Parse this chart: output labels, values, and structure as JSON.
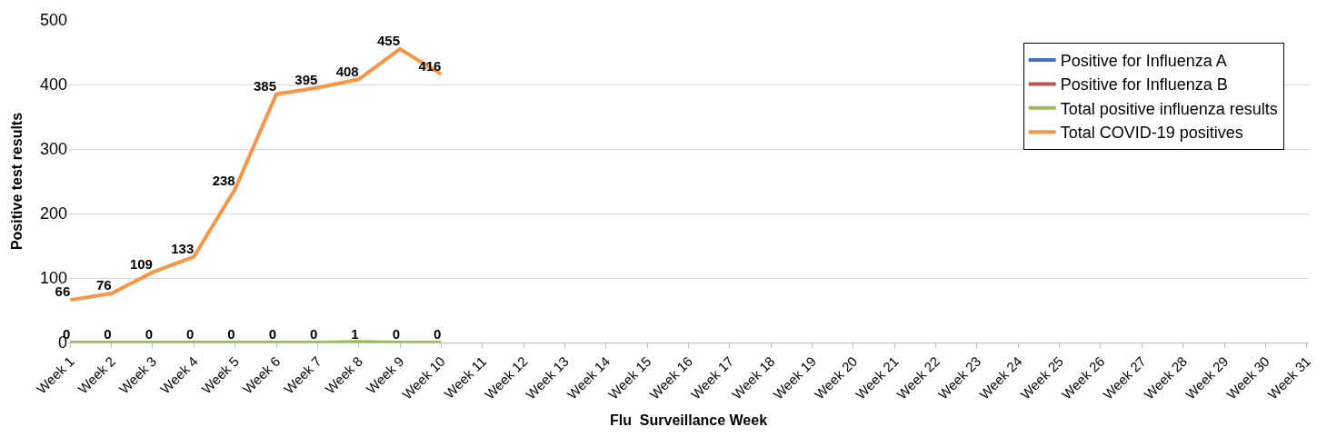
{
  "chart_data": {
    "type": "line",
    "xlabel": "Flu  Surveillance Week",
    "ylabel": "Positive test results",
    "categories": [
      "Week 1",
      "Week 2",
      "Week 3",
      "Week 4",
      "Week 5",
      "Week 6",
      "Week 7",
      "Week 8",
      "Week 9",
      "Week 10",
      "Week 11",
      "Week 12",
      "Week 13",
      "Week 14",
      "Week 15",
      "Week 16",
      "Week 17",
      "Week 18",
      "Week 19",
      "Week 20",
      "Week 21",
      "Week 22",
      "Week 23",
      "Week 24",
      "Week 25",
      "Week 26",
      "Week 27",
      "Week 28",
      "Week 29",
      "Week 30",
      "Week 31"
    ],
    "series": [
      {
        "name": "Positive for Influenza A",
        "color": "#4472c4",
        "values": [
          null,
          null,
          null,
          null,
          null,
          null,
          null,
          null,
          null,
          null,
          null,
          null,
          null,
          null,
          null,
          null,
          null,
          null,
          null,
          null,
          null,
          null,
          null,
          null,
          null,
          null,
          null,
          null,
          null,
          null,
          null
        ]
      },
      {
        "name": "Positive for Influenza B",
        "color": "#c0504d",
        "values": [
          null,
          null,
          null,
          null,
          null,
          null,
          null,
          null,
          null,
          null,
          null,
          null,
          null,
          null,
          null,
          null,
          null,
          null,
          null,
          null,
          null,
          null,
          null,
          null,
          null,
          null,
          null,
          null,
          null,
          null,
          null
        ]
      },
      {
        "name": "Total positive influenza results",
        "color": "#9bbb59",
        "values": [
          0,
          0,
          0,
          0,
          0,
          0,
          0,
          1,
          0,
          0,
          null,
          null,
          null,
          null,
          null,
          null,
          null,
          null,
          null,
          null,
          null,
          null,
          null,
          null,
          null,
          null,
          null,
          null,
          null,
          null,
          null
        ],
        "value_labels": [
          "0",
          "0",
          "0",
          "0",
          "0",
          "0",
          "0",
          "1",
          "0",
          "0",
          null,
          null,
          null,
          null,
          null,
          null,
          null,
          null,
          null,
          null,
          null,
          null,
          null,
          null,
          null,
          null,
          null,
          null,
          null,
          null,
          null
        ]
      },
      {
        "name": "Total COVID-19 positives",
        "color": "#f79646",
        "values": [
          66,
          76,
          109,
          133,
          238,
          385,
          395,
          408,
          455,
          416,
          null,
          null,
          null,
          null,
          null,
          null,
          null,
          null,
          null,
          null,
          null,
          null,
          null,
          null,
          null,
          null,
          null,
          null,
          null,
          null,
          null
        ],
        "value_labels": [
          "66",
          "76",
          "109",
          "133",
          "238",
          "385",
          "395",
          "408",
          "455",
          "416",
          null,
          null,
          null,
          null,
          null,
          null,
          null,
          null,
          null,
          null,
          null,
          null,
          null,
          null,
          null,
          null,
          null,
          null,
          null,
          null,
          null
        ]
      }
    ],
    "ylim": [
      0,
      500
    ],
    "yticks": [
      0,
      100,
      200,
      300,
      400,
      500
    ],
    "grid": "y",
    "legend": "top right",
    "marker": "none",
    "line_style": "solid"
  }
}
